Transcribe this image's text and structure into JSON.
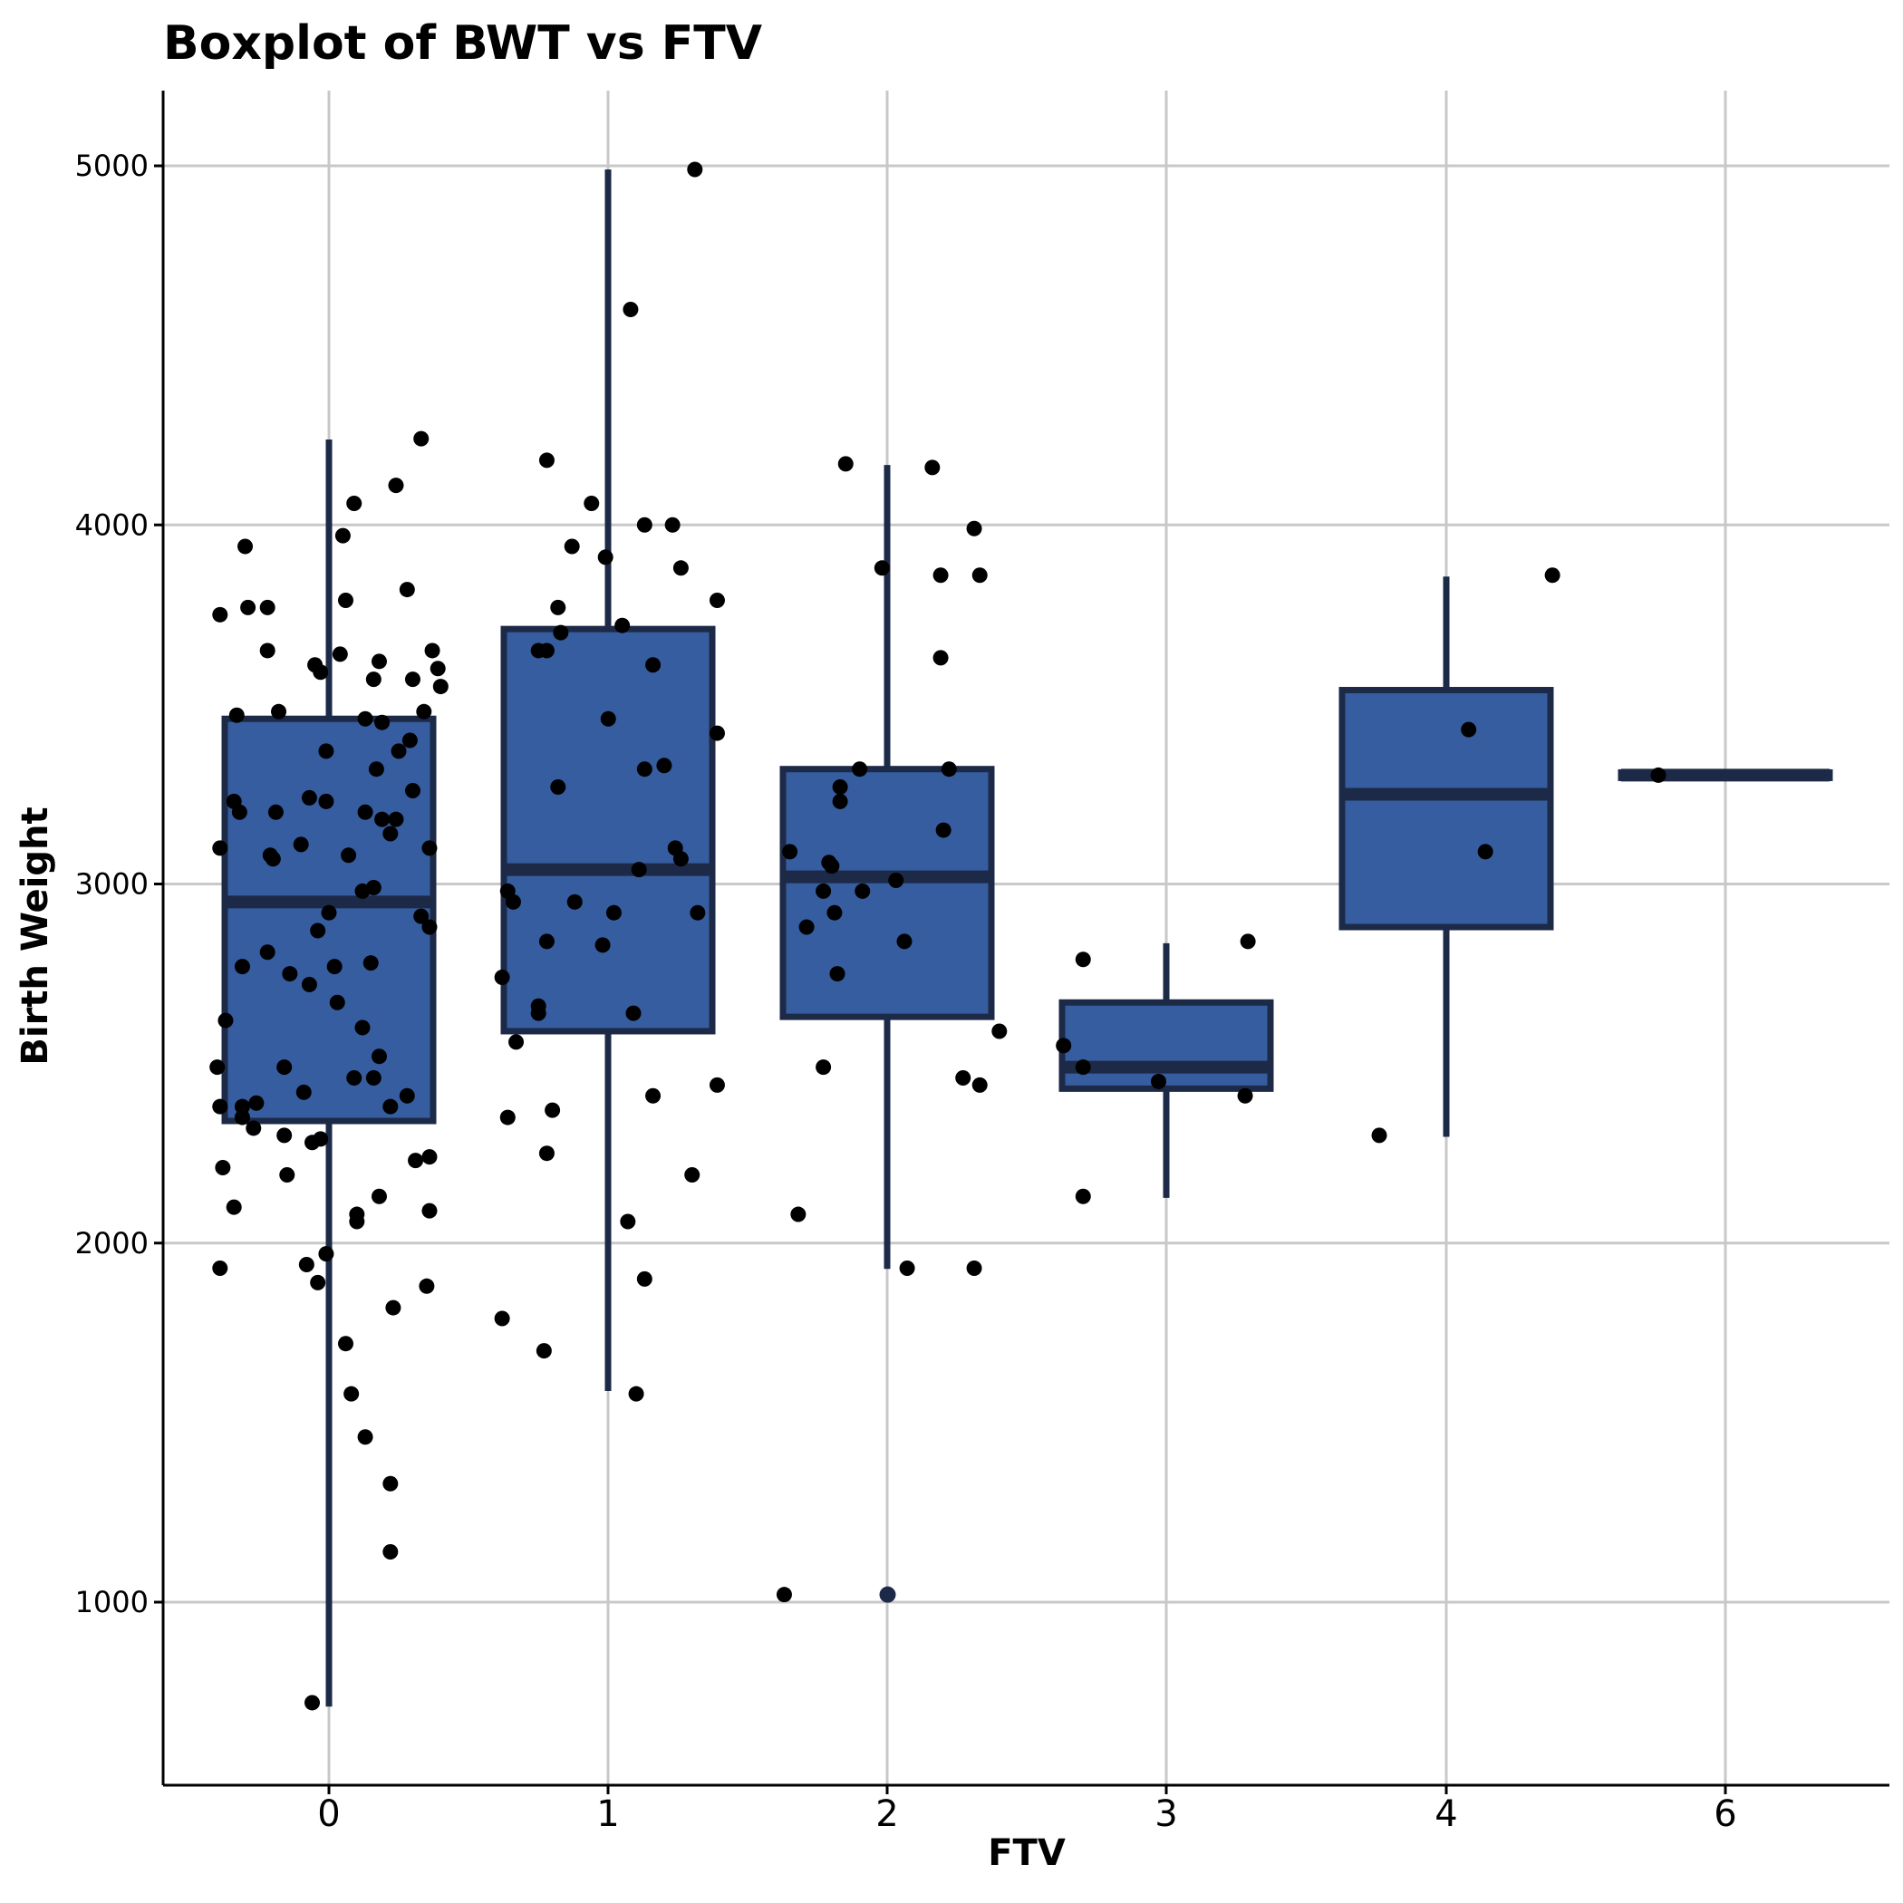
{
  "chart_data": {
    "type": "boxplot",
    "title": "Boxplot of BWT vs  FTV",
    "xlabel": "FTV",
    "ylabel": "Birth Weight",
    "categories": [
      "0",
      "1",
      "2",
      "3",
      "4",
      "6"
    ],
    "ylim": [
      500,
      5200
    ],
    "yticks": [
      "1000",
      "2000",
      "3000",
      "4000",
      "5000"
    ],
    "grid": true,
    "colors": {
      "box_fill": "#365d9f",
      "box_stroke": "#1c2a47",
      "point": "#000000",
      "grid": "#c8c8c8"
    },
    "boxes": [
      {
        "category": "0",
        "q1": 2340,
        "median": 2950,
        "q3": 3460,
        "whisker_low": 709,
        "whisker_high": 4238
      },
      {
        "category": "1",
        "q1": 2590,
        "median": 3040,
        "q3": 3710,
        "whisker_low": 1588,
        "whisker_high": 4990
      },
      {
        "category": "2",
        "q1": 2630,
        "median": 3020,
        "q3": 3320,
        "whisker_low": 1928,
        "whisker_high": 4167
      },
      {
        "category": "3",
        "q1": 2430,
        "median": 2490,
        "q3": 2670,
        "whisker_low": 2126,
        "whisker_high": 2835
      },
      {
        "category": "4",
        "q1": 2880,
        "median": 3250,
        "q3": 3540,
        "whisker_low": 2296,
        "whisker_high": 3856
      },
      {
        "category": "6",
        "q1": 3303,
        "median": 3303,
        "q3": 3303,
        "whisker_low": 3303,
        "whisker_high": 3303
      }
    ],
    "outliers": [
      {
        "x": 2,
        "y": 1021
      }
    ],
    "points": [
      {
        "x": -0.39,
        "y": 3750
      },
      {
        "x": -0.3,
        "y": 3940
      },
      {
        "x": -0.29,
        "y": 3770
      },
      {
        "x": -0.22,
        "y": 3770
      },
      {
        "x": -0.22,
        "y": 3650
      },
      {
        "x": -0.18,
        "y": 3480
      },
      {
        "x": -0.33,
        "y": 3470
      },
      {
        "x": -0.05,
        "y": 3610
      },
      {
        "x": -0.03,
        "y": 3590
      },
      {
        "x": 0.04,
        "y": 3640
      },
      {
        "x": 0.05,
        "y": 3970
      },
      {
        "x": 0.06,
        "y": 3790
      },
      {
        "x": 0.09,
        "y": 4060
      },
      {
        "x": 0.24,
        "y": 4110
      },
      {
        "x": 0.28,
        "y": 3820
      },
      {
        "x": 0.33,
        "y": 4240
      },
      {
        "x": -0.34,
        "y": 3230
      },
      {
        "x": -0.32,
        "y": 3200
      },
      {
        "x": -0.19,
        "y": 3200
      },
      {
        "x": -0.2,
        "y": 3070
      },
      {
        "x": -0.21,
        "y": 3080
      },
      {
        "x": -0.1,
        "y": 3110
      },
      {
        "x": -0.07,
        "y": 3240
      },
      {
        "x": -0.01,
        "y": 3370
      },
      {
        "x": -0.01,
        "y": 3230
      },
      {
        "x": 0.07,
        "y": 3080
      },
      {
        "x": 0.13,
        "y": 3200
      },
      {
        "x": 0.13,
        "y": 3460
      },
      {
        "x": 0.16,
        "y": 3570
      },
      {
        "x": 0.18,
        "y": 3620
      },
      {
        "x": 0.19,
        "y": 3450
      },
      {
        "x": 0.17,
        "y": 3320
      },
      {
        "x": 0.19,
        "y": 3180
      },
      {
        "x": 0.22,
        "y": 3140
      },
      {
        "x": 0.24,
        "y": 3180
      },
      {
        "x": 0.25,
        "y": 3370
      },
      {
        "x": 0.29,
        "y": 3400
      },
      {
        "x": 0.3,
        "y": 3260
      },
      {
        "x": 0.3,
        "y": 3570
      },
      {
        "x": 0.34,
        "y": 3480
      },
      {
        "x": 0.37,
        "y": 3650
      },
      {
        "x": 0.39,
        "y": 3600
      },
      {
        "x": 0.4,
        "y": 3550
      },
      {
        "x": 0.36,
        "y": 3100
      },
      {
        "x": -0.39,
        "y": 3100
      },
      {
        "x": -0.37,
        "y": 2620
      },
      {
        "x": -0.31,
        "y": 2770
      },
      {
        "x": -0.22,
        "y": 2810
      },
      {
        "x": -0.14,
        "y": 2750
      },
      {
        "x": -0.07,
        "y": 2720
      },
      {
        "x": -0.04,
        "y": 2870
      },
      {
        "x": 0.0,
        "y": 2920
      },
      {
        "x": 0.02,
        "y": 2770
      },
      {
        "x": 0.03,
        "y": 2670
      },
      {
        "x": 0.12,
        "y": 2980
      },
      {
        "x": 0.16,
        "y": 2990
      },
      {
        "x": 0.15,
        "y": 2780
      },
      {
        "x": 0.12,
        "y": 2600
      },
      {
        "x": 0.33,
        "y": 2910
      },
      {
        "x": 0.36,
        "y": 2880
      },
      {
        "x": -0.4,
        "y": 2490
      },
      {
        "x": -0.39,
        "y": 2380
      },
      {
        "x": -0.31,
        "y": 2380
      },
      {
        "x": -0.31,
        "y": 2350
      },
      {
        "x": -0.26,
        "y": 2390
      },
      {
        "x": -0.27,
        "y": 2320
      },
      {
        "x": -0.16,
        "y": 2490
      },
      {
        "x": -0.09,
        "y": 2420
      },
      {
        "x": 0.09,
        "y": 2460
      },
      {
        "x": 0.16,
        "y": 2460
      },
      {
        "x": 0.18,
        "y": 2520
      },
      {
        "x": 0.22,
        "y": 2380
      },
      {
        "x": 0.28,
        "y": 2410
      },
      {
        "x": -0.16,
        "y": 2300
      },
      {
        "x": -0.06,
        "y": 2280
      },
      {
        "x": -0.03,
        "y": 2290
      },
      {
        "x": -0.38,
        "y": 2210
      },
      {
        "x": -0.34,
        "y": 2100
      },
      {
        "x": -0.15,
        "y": 2190
      },
      {
        "x": 0.1,
        "y": 2080
      },
      {
        "x": 0.1,
        "y": 2060
      },
      {
        "x": 0.18,
        "y": 2130
      },
      {
        "x": 0.31,
        "y": 2230
      },
      {
        "x": 0.36,
        "y": 2240
      },
      {
        "x": 0.36,
        "y": 2090
      },
      {
        "x": -0.39,
        "y": 1930
      },
      {
        "x": -0.08,
        "y": 1940
      },
      {
        "x": -0.04,
        "y": 1890
      },
      {
        "x": -0.01,
        "y": 1970
      },
      {
        "x": 0.23,
        "y": 1820
      },
      {
        "x": 0.35,
        "y": 1880
      },
      {
        "x": 0.06,
        "y": 1720
      },
      {
        "x": 0.08,
        "y": 1580
      },
      {
        "x": 0.13,
        "y": 1460
      },
      {
        "x": 0.22,
        "y": 1330
      },
      {
        "x": 0.22,
        "y": 1140
      },
      {
        "x": -0.06,
        "y": 720
      },
      {
        "x": 0.78,
        "y": 4180
      },
      {
        "x": 0.94,
        "y": 4060
      },
      {
        "x": 0.87,
        "y": 3940
      },
      {
        "x": 0.99,
        "y": 3910
      },
      {
        "x": 1.13,
        "y": 4000
      },
      {
        "x": 1.23,
        "y": 4000
      },
      {
        "x": 1.26,
        "y": 3880
      },
      {
        "x": 1.39,
        "y": 3790
      },
      {
        "x": 0.82,
        "y": 3770
      },
      {
        "x": 0.83,
        "y": 3700
      },
      {
        "x": 0.75,
        "y": 3650
      },
      {
        "x": 0.78,
        "y": 3650
      },
      {
        "x": 1.05,
        "y": 3720
      },
      {
        "x": 1.16,
        "y": 3610
      },
      {
        "x": 1.0,
        "y": 3460
      },
      {
        "x": 1.39,
        "y": 3420
      },
      {
        "x": 1.13,
        "y": 3320
      },
      {
        "x": 1.2,
        "y": 3330
      },
      {
        "x": 0.82,
        "y": 3270
      },
      {
        "x": 1.24,
        "y": 3100
      },
      {
        "x": 1.26,
        "y": 3070
      },
      {
        "x": 1.11,
        "y": 3040
      },
      {
        "x": 0.64,
        "y": 2980
      },
      {
        "x": 0.66,
        "y": 2950
      },
      {
        "x": 0.88,
        "y": 2950
      },
      {
        "x": 1.02,
        "y": 2920
      },
      {
        "x": 1.32,
        "y": 2920
      },
      {
        "x": 0.78,
        "y": 2840
      },
      {
        "x": 0.98,
        "y": 2830
      },
      {
        "x": 0.62,
        "y": 2740
      },
      {
        "x": 0.75,
        "y": 2660
      },
      {
        "x": 0.75,
        "y": 2640
      },
      {
        "x": 1.09,
        "y": 2640
      },
      {
        "x": 0.67,
        "y": 2560
      },
      {
        "x": 1.39,
        "y": 2440
      },
      {
        "x": 1.16,
        "y": 2410
      },
      {
        "x": 0.8,
        "y": 2370
      },
      {
        "x": 0.64,
        "y": 2350
      },
      {
        "x": 0.78,
        "y": 2250
      },
      {
        "x": 1.3,
        "y": 2190
      },
      {
        "x": 1.07,
        "y": 2060
      },
      {
        "x": 1.13,
        "y": 1900
      },
      {
        "x": 0.62,
        "y": 1790
      },
      {
        "x": 0.77,
        "y": 1700
      },
      {
        "x": 1.1,
        "y": 1580
      },
      {
        "x": 1.08,
        "y": 4600
      },
      {
        "x": 1.31,
        "y": 4990
      },
      {
        "x": 1.85,
        "y": 4170
      },
      {
        "x": 2.16,
        "y": 4160
      },
      {
        "x": 2.31,
        "y": 3990
      },
      {
        "x": 1.98,
        "y": 3880
      },
      {
        "x": 2.19,
        "y": 3860
      },
      {
        "x": 2.33,
        "y": 3860
      },
      {
        "x": 2.19,
        "y": 3630
      },
      {
        "x": 1.9,
        "y": 3320
      },
      {
        "x": 2.22,
        "y": 3320
      },
      {
        "x": 1.83,
        "y": 3270
      },
      {
        "x": 1.83,
        "y": 3230
      },
      {
        "x": 2.2,
        "y": 3150
      },
      {
        "x": 1.65,
        "y": 3090
      },
      {
        "x": 1.79,
        "y": 3060
      },
      {
        "x": 1.8,
        "y": 3050
      },
      {
        "x": 2.03,
        "y": 3010
      },
      {
        "x": 1.77,
        "y": 2980
      },
      {
        "x": 1.91,
        "y": 2980
      },
      {
        "x": 1.81,
        "y": 2920
      },
      {
        "x": 1.71,
        "y": 2880
      },
      {
        "x": 2.06,
        "y": 2840
      },
      {
        "x": 1.82,
        "y": 2750
      },
      {
        "x": 2.4,
        "y": 2590
      },
      {
        "x": 1.77,
        "y": 2490
      },
      {
        "x": 2.27,
        "y": 2460
      },
      {
        "x": 2.33,
        "y": 2440
      },
      {
        "x": 1.68,
        "y": 2080
      },
      {
        "x": 2.07,
        "y": 1930
      },
      {
        "x": 2.31,
        "y": 1930
      },
      {
        "x": 1.63,
        "y": 1021
      },
      {
        "x": 2.7,
        "y": 2790
      },
      {
        "x": 3.29,
        "y": 2840
      },
      {
        "x": 2.63,
        "y": 2550
      },
      {
        "x": 2.7,
        "y": 2490
      },
      {
        "x": 2.97,
        "y": 2450
      },
      {
        "x": 3.28,
        "y": 2410
      },
      {
        "x": 2.7,
        "y": 2130
      },
      {
        "x": 4.38,
        "y": 3860
      },
      {
        "x": 4.08,
        "y": 3430
      },
      {
        "x": 4.14,
        "y": 3090
      },
      {
        "x": 3.76,
        "y": 2300
      },
      {
        "x": 5.76,
        "y": 3303
      }
    ]
  }
}
